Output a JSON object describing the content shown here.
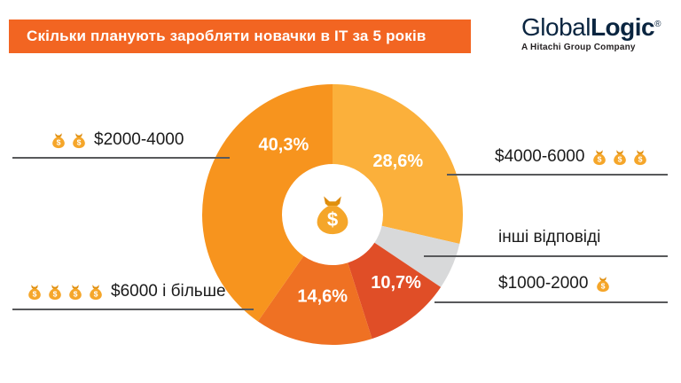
{
  "header": {
    "title": "Скільки планують заробляти новачки в ІТ за 5 років",
    "banner_color": "#F26522"
  },
  "logo": {
    "part1": "Global",
    "part2": "Logic",
    "registered": "®",
    "tagline": "A Hitachi Group Company"
  },
  "chart_data": {
    "type": "pie",
    "variant": "donut",
    "title": "Скільки планують заробляти новачки в ІТ за 5 років",
    "unit": "percent",
    "start_angle_deg": 0,
    "direction": "clockwise",
    "center_icon": "money-bag",
    "legend_position": "callouts",
    "segments": [
      {
        "label": "$4000-6000",
        "value": 28.6,
        "display": "28,6%",
        "color": "#FBB03B",
        "money_bags": 3,
        "label_angle": 51,
        "label_radius": 95
      },
      {
        "label": "інші відповіді",
        "value": 5.8,
        "display": "",
        "color": "#D8D9DA",
        "money_bags": 0
      },
      {
        "label": "$1000-2000",
        "value": 10.7,
        "display": "10,7%",
        "color": "#E04E27",
        "money_bags": 1,
        "label_angle": 137,
        "label_radius": 105
      },
      {
        "label": "$6000 і більше",
        "value": 14.6,
        "display": "14,6%",
        "color": "#EF7123",
        "money_bags": 4,
        "label_angle": 187,
        "label_radius": 93
      },
      {
        "label": "$2000-4000",
        "value": 40.3,
        "display": "40,3%",
        "color": "#F7941E",
        "money_bags": 2,
        "label_angle": 325,
        "label_radius": 96
      }
    ]
  },
  "callouts": {
    "top_left": {
      "text": "$2000-4000",
      "bags": 2
    },
    "top_right": {
      "text": "$4000-6000",
      "bags": 3
    },
    "mid_right": {
      "text": "інші відповіді",
      "bags": 0
    },
    "bottom_right": {
      "text": "$1000-2000",
      "bags": 1
    },
    "bottom_left": {
      "text": "$6000 і більше",
      "bags": 4
    }
  }
}
